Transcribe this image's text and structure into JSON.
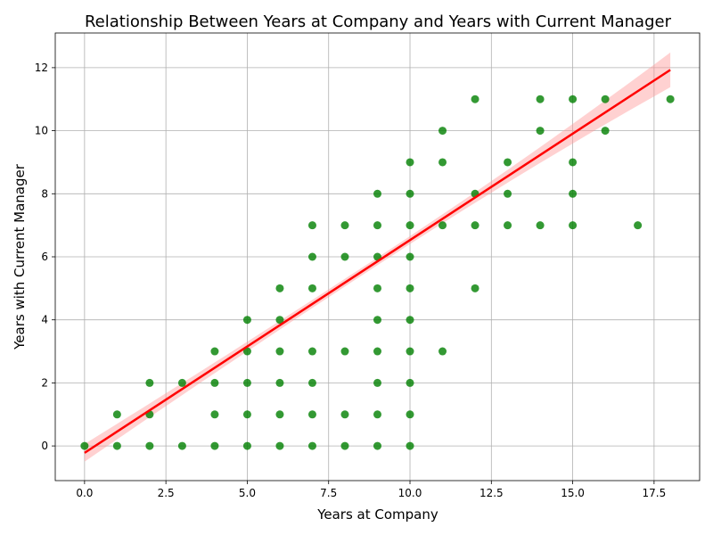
{
  "chart_data": {
    "type": "scatter",
    "title": "Relationship Between Years at Company and Years with Current Manager",
    "xlabel": "Years at Company",
    "ylabel": "Years with Current Manager",
    "xlim": [
      -0.9,
      18.9
    ],
    "ylim": [
      -1.1,
      13.1
    ],
    "xticks": [
      0.0,
      2.5,
      5.0,
      7.5,
      10.0,
      12.5,
      15.0,
      17.5
    ],
    "xtick_labels": [
      "0.0",
      "2.5",
      "5.0",
      "7.5",
      "10.0",
      "12.5",
      "15.0",
      "17.5"
    ],
    "yticks": [
      0,
      2,
      4,
      6,
      8,
      10,
      12
    ],
    "ytick_labels": [
      "0",
      "2",
      "4",
      "6",
      "8",
      "10",
      "12"
    ],
    "grid": true,
    "colors": {
      "points": "#008000",
      "regression_line": "#ff0000",
      "confidence_band": "#ff9999",
      "grid": "#b0b0b0",
      "spine": "#000000"
    },
    "series": [
      {
        "type": "scatter",
        "points": [
          [
            0,
            0
          ],
          [
            1,
            0
          ],
          [
            1,
            1
          ],
          [
            2,
            0
          ],
          [
            2,
            1
          ],
          [
            2,
            2
          ],
          [
            3,
            0
          ],
          [
            3,
            2
          ],
          [
            4,
            0
          ],
          [
            4,
            1
          ],
          [
            4,
            2
          ],
          [
            4,
            3
          ],
          [
            5,
            0
          ],
          [
            5,
            1
          ],
          [
            5,
            2
          ],
          [
            5,
            3
          ],
          [
            5,
            4
          ],
          [
            6,
            0
          ],
          [
            6,
            1
          ],
          [
            6,
            2
          ],
          [
            6,
            3
          ],
          [
            6,
            4
          ],
          [
            6,
            5
          ],
          [
            7,
            0
          ],
          [
            7,
            1
          ],
          [
            7,
            2
          ],
          [
            7,
            3
          ],
          [
            7,
            5
          ],
          [
            7,
            6
          ],
          [
            7,
            7
          ],
          [
            8,
            0
          ],
          [
            8,
            1
          ],
          [
            8,
            3
          ],
          [
            8,
            6
          ],
          [
            8,
            7
          ],
          [
            9,
            0
          ],
          [
            9,
            1
          ],
          [
            9,
            2
          ],
          [
            9,
            3
          ],
          [
            9,
            4
          ],
          [
            9,
            5
          ],
          [
            9,
            6
          ],
          [
            9,
            7
          ],
          [
            9,
            8
          ],
          [
            10,
            0
          ],
          [
            10,
            1
          ],
          [
            10,
            2
          ],
          [
            10,
            3
          ],
          [
            10,
            4
          ],
          [
            10,
            5
          ],
          [
            10,
            6
          ],
          [
            10,
            7
          ],
          [
            10,
            8
          ],
          [
            10,
            9
          ],
          [
            11,
            3
          ],
          [
            11,
            7
          ],
          [
            11,
            9
          ],
          [
            11,
            10
          ],
          [
            12,
            5
          ],
          [
            12,
            7
          ],
          [
            12,
            8
          ],
          [
            12,
            11
          ],
          [
            13,
            7
          ],
          [
            13,
            8
          ],
          [
            13,
            9
          ],
          [
            14,
            7
          ],
          [
            14,
            10
          ],
          [
            14,
            11
          ],
          [
            15,
            7
          ],
          [
            15,
            8
          ],
          [
            15,
            9
          ],
          [
            15,
            11
          ],
          [
            16,
            10
          ],
          [
            16,
            11
          ],
          [
            17,
            7
          ],
          [
            18,
            11
          ]
        ]
      },
      {
        "type": "regression",
        "x_range": [
          0,
          18
        ],
        "y_range": [
          -0.22,
          11.93
        ],
        "ci_halfwidth_at_ends": [
          0.28,
          0.55
        ],
        "ci_halfwidth_min": 0.12
      }
    ]
  }
}
